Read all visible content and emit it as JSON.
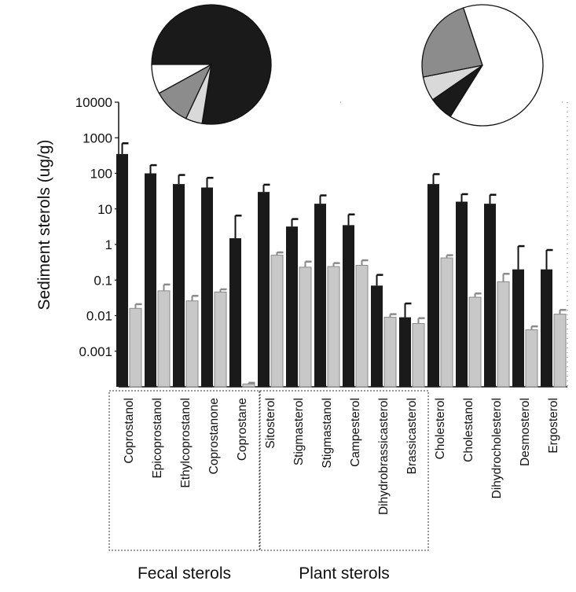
{
  "chart_data": {
    "type": "bar",
    "ylabel": "Sediment sterols (ug/g)",
    "yscale": "log",
    "ylim": [
      0.0001,
      10000
    ],
    "yticks": [
      "10000",
      "1000",
      "100",
      "10",
      "1",
      "0.1",
      "0.01",
      "0.001"
    ],
    "categories": [
      "Coprostanol",
      "Epicoprostanol",
      "Ethylcoprostanol",
      "Coprostanone",
      "Coprostane",
      "Sitosterol",
      "Stigmasterol",
      "Stigmastanol",
      "Campesterol",
      "Dihydrobrassicasterol",
      "Brassicasterol",
      "Cholesterol",
      "Cholestanol",
      "Dihydrocholesterol",
      "Desmosterol",
      "Ergosterol"
    ],
    "series": [
      {
        "color": "#1a1a1a",
        "values": [
          350,
          100,
          50,
          40,
          1.5,
          30,
          3.2,
          14,
          3.5,
          0.07,
          0.009,
          50,
          16,
          14,
          0.2,
          0.2
        ],
        "errors": [
          700,
          170,
          90,
          75,
          6.5,
          48,
          5.2,
          24,
          7,
          0.14,
          0.022,
          95,
          26,
          25,
          0.9,
          0.7
        ]
      },
      {
        "color": "#c8c8c8",
        "values": [
          0.016,
          0.05,
          0.026,
          0.046,
          0.00012,
          0.5,
          0.23,
          0.24,
          0.26,
          0.009,
          0.006,
          0.42,
          0.033,
          0.09,
          0.004,
          0.011
        ],
        "errors": [
          0.021,
          0.075,
          0.036,
          0.055,
          0.00013,
          0.6,
          0.33,
          0.3,
          0.36,
          0.011,
          0.0085,
          0.5,
          0.042,
          0.15,
          0.005,
          0.0145
        ]
      }
    ],
    "groups": [
      {
        "label": "Fecal sterols",
        "from": 0,
        "to": 4
      },
      {
        "label": "Plant sterols",
        "from": 5,
        "to": 10
      }
    ],
    "pies": [
      {
        "slices": [
          {
            "value": 77.5,
            "color": "#1a1a1a"
          },
          {
            "value": 4.5,
            "color": "#d9d9d9"
          },
          {
            "value": 10,
            "color": "#8c8c8c"
          },
          {
            "value": 8,
            "color": "#ffffff"
          }
        ]
      },
      {
        "slices": [
          {
            "value": 6.5,
            "color": "#1a1a1a"
          },
          {
            "value": 6.5,
            "color": "#d9d9d9"
          },
          {
            "value": 23,
            "color": "#8c8c8c"
          },
          {
            "value": 64,
            "color": "#ffffff"
          }
        ]
      }
    ]
  }
}
